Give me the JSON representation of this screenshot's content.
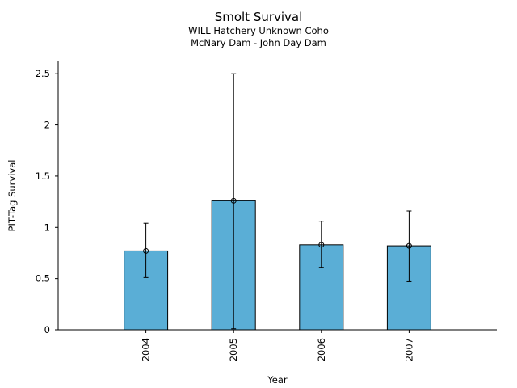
{
  "chart_data": {
    "type": "bar",
    "title": "Smolt Survival",
    "subtitle_lines": [
      "WILL Hatchery Unknown Coho",
      "McNary Dam - John Day Dam"
    ],
    "xlabel": "Year",
    "ylabel": "PIT-Tag Survival",
    "categories": [
      "2004",
      "2005",
      "2006",
      "2007"
    ],
    "values": [
      0.77,
      1.26,
      0.83,
      0.82
    ],
    "error_low": [
      0.51,
      0.01,
      0.61,
      0.47
    ],
    "error_high": [
      1.04,
      2.5,
      1.06,
      1.16
    ],
    "ylim": [
      0,
      2.62
    ],
    "yticks": [
      "0",
      "0.5",
      "1",
      "1.5",
      "2",
      "2.5"
    ],
    "ytick_values": [
      0,
      0.5,
      1,
      1.5,
      2,
      2.5
    ],
    "bar_color": "#5aaed6",
    "grid": false,
    "legend": "none"
  }
}
